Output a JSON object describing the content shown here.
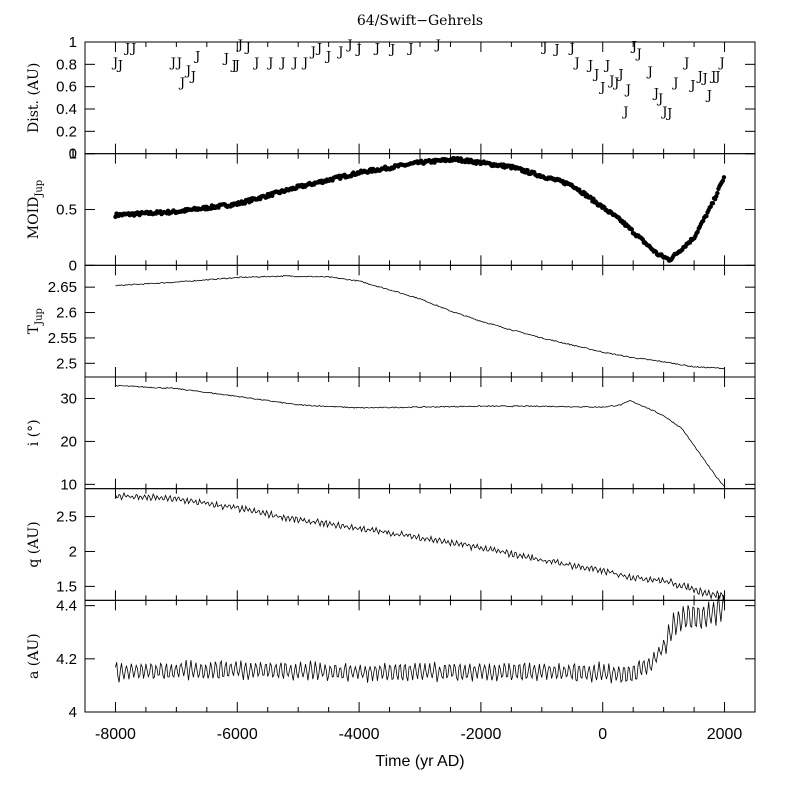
{
  "chart_data": {
    "type": "line",
    "title": "64/Swift−Gehrels",
    "xlabel": "Time (yr AD)",
    "xlim": [
      -8500,
      2500
    ],
    "xticks": [
      -8000,
      -6000,
      -4000,
      -2000,
      0,
      2000
    ],
    "xtick_labels": [
      "-8000",
      "-6000",
      "-4000",
      "-2000",
      "0",
      "2000"
    ],
    "panels": [
      {
        "id": "dist",
        "ylabel": "Dist. (AU)",
        "ylim": [
          0,
          1
        ],
        "yticks": [
          0,
          0.2,
          0.4,
          0.6,
          0.8,
          1
        ],
        "ytick_labels": [
          "0",
          "0.2",
          "0.4",
          "0.6",
          "0.8",
          "1"
        ],
        "marker_text": "J",
        "points": [
          [
            -8000,
            0.82
          ],
          [
            -7920,
            0.8
          ],
          [
            -7800,
            0.95
          ],
          [
            -7700,
            0.95
          ],
          [
            -7050,
            0.82
          ],
          [
            -6950,
            0.82
          ],
          [
            -6900,
            0.64
          ],
          [
            -6800,
            0.75
          ],
          [
            -6720,
            0.7
          ],
          [
            -6650,
            0.88
          ],
          [
            -6180,
            0.86
          ],
          [
            -6050,
            0.8
          ],
          [
            -6000,
            0.8
          ],
          [
            -5950,
            0.98
          ],
          [
            -5820,
            0.96
          ],
          [
            -5680,
            0.82
          ],
          [
            -5450,
            0.82
          ],
          [
            -5250,
            0.82
          ],
          [
            -5050,
            0.82
          ],
          [
            -4880,
            0.82
          ],
          [
            -4750,
            0.92
          ],
          [
            -4650,
            0.95
          ],
          [
            -4500,
            0.88
          ],
          [
            -4300,
            0.92
          ],
          [
            -4150,
            0.98
          ],
          [
            -4000,
            0.94
          ],
          [
            -3700,
            0.95
          ],
          [
            -3450,
            0.94
          ],
          [
            -3150,
            0.95
          ],
          [
            -2700,
            0.98
          ],
          [
            -950,
            0.96
          ],
          [
            -750,
            0.94
          ],
          [
            -500,
            0.95
          ],
          [
            -420,
            0.82
          ],
          [
            -200,
            0.8
          ],
          [
            -100,
            0.72
          ],
          [
            0,
            0.6
          ],
          [
            80,
            0.8
          ],
          [
            150,
            0.66
          ],
          [
            230,
            0.64
          ],
          [
            300,
            0.72
          ],
          [
            380,
            0.38
          ],
          [
            420,
            0.58
          ],
          [
            520,
            0.97
          ],
          [
            600,
            0.9
          ],
          [
            780,
            0.74
          ],
          [
            880,
            0.55
          ],
          [
            950,
            0.5
          ],
          [
            1020,
            0.38
          ],
          [
            1100,
            0.37
          ],
          [
            1200,
            0.64
          ],
          [
            1380,
            0.82
          ],
          [
            1480,
            0.62
          ],
          [
            1600,
            0.7
          ],
          [
            1680,
            0.68
          ],
          [
            1750,
            0.53
          ],
          [
            1820,
            0.7
          ],
          [
            1890,
            0.7
          ],
          [
            1960,
            0.82
          ]
        ]
      },
      {
        "id": "moid",
        "ylabel": "MOID",
        "ylabel_sub": "Jup",
        "ylim": [
          0,
          1
        ],
        "yticks": [
          0,
          0.5,
          1
        ],
        "ytick_labels": [
          "0",
          "0.5",
          "1"
        ],
        "style": "dots",
        "series": [
          [
            -8000,
            0.45
          ],
          [
            -7000,
            0.48
          ],
          [
            -6000,
            0.55
          ],
          [
            -5000,
            0.7
          ],
          [
            -4000,
            0.83
          ],
          [
            -3000,
            0.92
          ],
          [
            -2400,
            0.95
          ],
          [
            -1500,
            0.88
          ],
          [
            -500,
            0.72
          ],
          [
            300,
            0.4
          ],
          [
            900,
            0.1
          ],
          [
            1100,
            0.05
          ],
          [
            1500,
            0.25
          ],
          [
            1800,
            0.55
          ],
          [
            2000,
            0.8
          ]
        ]
      },
      {
        "id": "tjup",
        "ylabel": "T",
        "ylabel_sub": "Jup",
        "ylim": [
          2.473,
          2.693
        ],
        "yticks": [
          2.5,
          2.55,
          2.6,
          2.65
        ],
        "ytick_labels": [
          "2.5",
          "2.55",
          "2.6",
          "2.65"
        ],
        "style": "line",
        "series": [
          [
            -8000,
            2.653
          ],
          [
            -7000,
            2.66
          ],
          [
            -6000,
            2.669
          ],
          [
            -5200,
            2.672
          ],
          [
            -4500,
            2.67
          ],
          [
            -4000,
            2.662
          ],
          [
            -3500,
            2.645
          ],
          [
            -3000,
            2.627
          ],
          [
            -2500,
            2.603
          ],
          [
            -2000,
            2.583
          ],
          [
            -1500,
            2.566
          ],
          [
            -1000,
            2.55
          ],
          [
            -500,
            2.536
          ],
          [
            0,
            2.522
          ],
          [
            500,
            2.511
          ],
          [
            1000,
            2.503
          ],
          [
            1500,
            2.493
          ],
          [
            2000,
            2.49
          ]
        ]
      },
      {
        "id": "incl",
        "ylabel": "i (°)",
        "ylim": [
          9,
          35
        ],
        "yticks": [
          10,
          20,
          30
        ],
        "ytick_labels": [
          "10",
          "20",
          "30"
        ],
        "style": "line",
        "series": [
          [
            -8000,
            33.0
          ],
          [
            -7000,
            32.3
          ],
          [
            -6000,
            30.5
          ],
          [
            -5000,
            28.5
          ],
          [
            -4000,
            27.8
          ],
          [
            -3000,
            28.0
          ],
          [
            -2000,
            28.2
          ],
          [
            -1000,
            28.2
          ],
          [
            0,
            28.0
          ],
          [
            300,
            28.5
          ],
          [
            450,
            29.5
          ],
          [
            700,
            28.0
          ],
          [
            1000,
            26.0
          ],
          [
            1300,
            23.0
          ],
          [
            1500,
            19.0
          ],
          [
            1700,
            15.0
          ],
          [
            1850,
            12.0
          ],
          [
            2000,
            9.5
          ]
        ]
      },
      {
        "id": "q",
        "ylabel": "q (AU)",
        "ylim": [
          1.3,
          2.9
        ],
        "yticks": [
          1.5,
          2,
          2.5
        ],
        "ytick_labels": [
          "1.5",
          "2",
          "2.5"
        ],
        "style": "line",
        "series": [
          [
            -8000,
            2.8
          ],
          [
            -7000,
            2.75
          ],
          [
            -6000,
            2.62
          ],
          [
            -5000,
            2.45
          ],
          [
            -4000,
            2.33
          ],
          [
            -3000,
            2.2
          ],
          [
            -2000,
            2.05
          ],
          [
            -1000,
            1.88
          ],
          [
            0,
            1.72
          ],
          [
            500,
            1.63
          ],
          [
            1000,
            1.58
          ],
          [
            1500,
            1.46
          ],
          [
            1800,
            1.38
          ],
          [
            2000,
            1.38
          ]
        ]
      },
      {
        "id": "a",
        "ylabel": "a (AU)",
        "ylim": [
          4,
          4.42
        ],
        "yticks": [
          4,
          4.2,
          4.4
        ],
        "ytick_labels": [
          "4",
          "4.2",
          "4.4"
        ],
        "style": "line",
        "series": [
          [
            -8000,
            4.15
          ],
          [
            -6000,
            4.16
          ],
          [
            -4000,
            4.15
          ],
          [
            -2000,
            4.15
          ],
          [
            0,
            4.15
          ],
          [
            400,
            4.14
          ],
          [
            800,
            4.18
          ],
          [
            1000,
            4.25
          ],
          [
            1200,
            4.34
          ],
          [
            1400,
            4.36
          ],
          [
            1600,
            4.36
          ],
          [
            1800,
            4.37
          ],
          [
            2000,
            4.4
          ]
        ]
      }
    ]
  }
}
